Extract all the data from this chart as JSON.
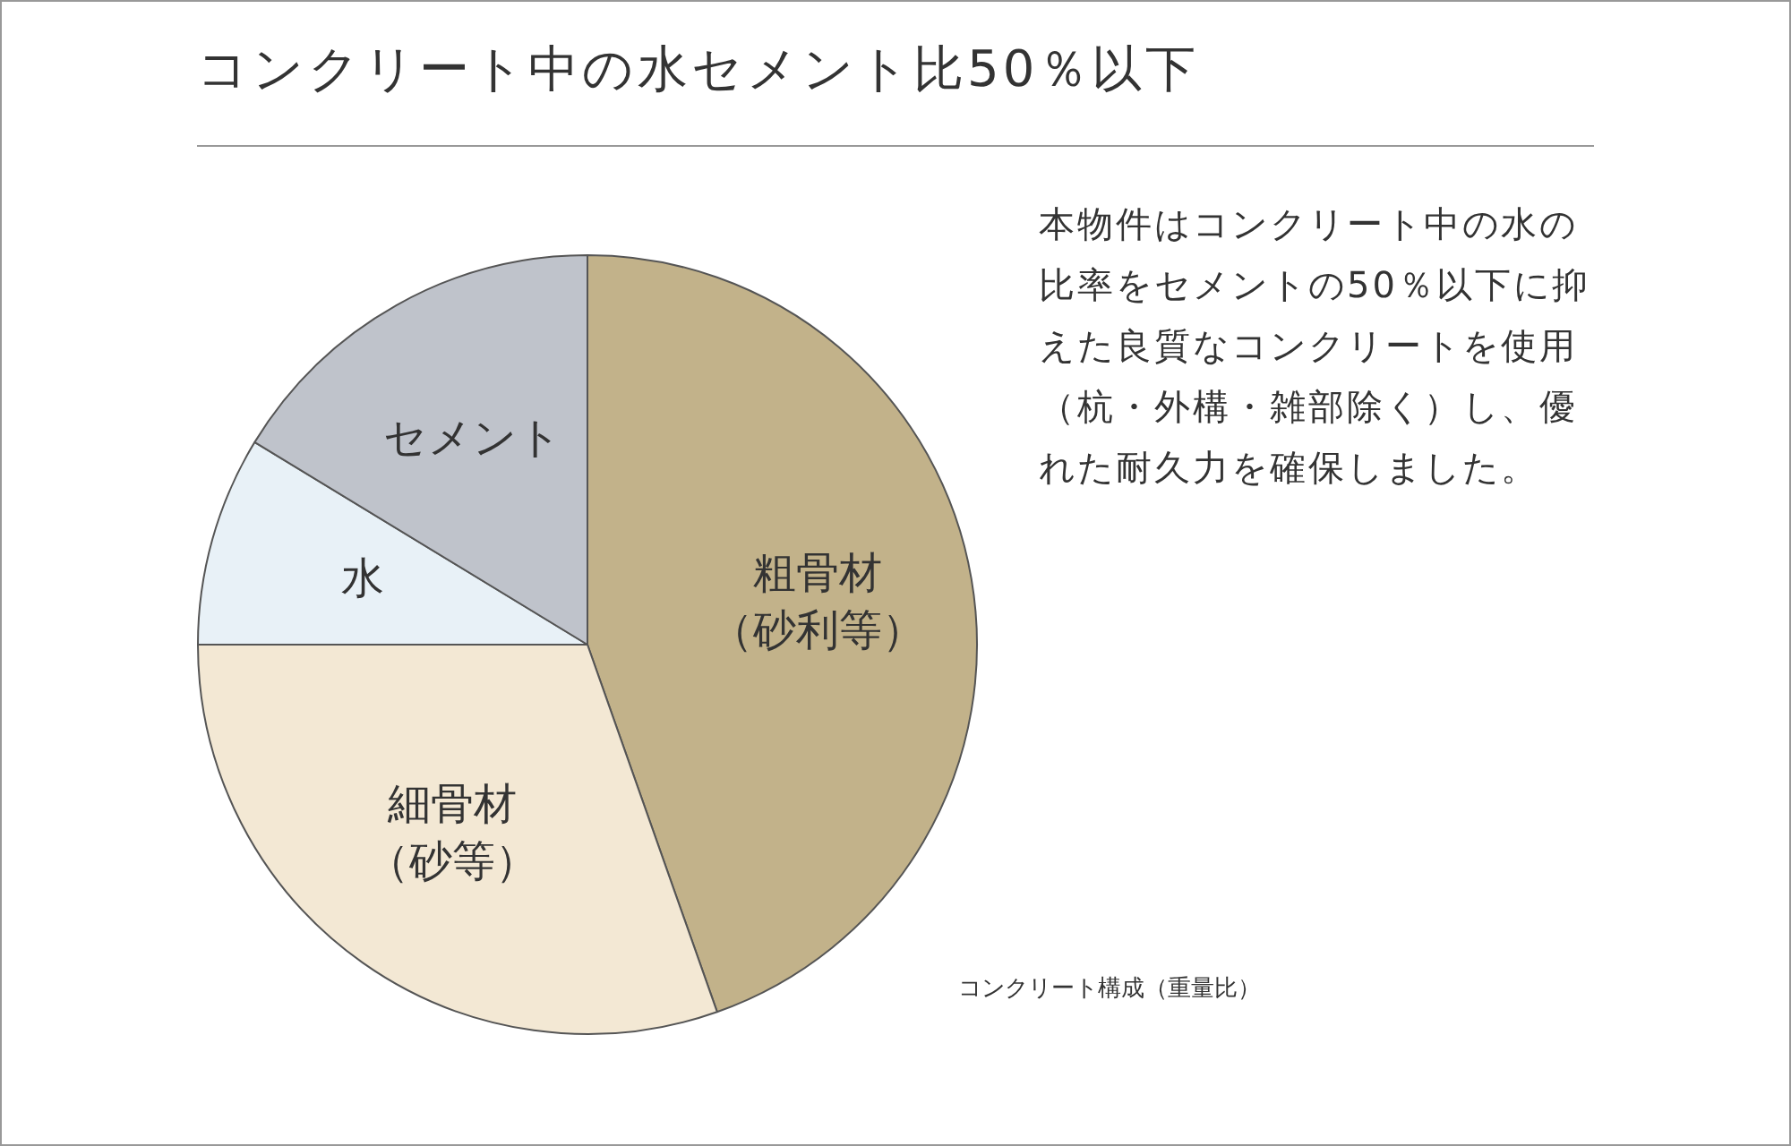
{
  "chart_data": {
    "type": "pie",
    "title": "コンクリート中の水セメント比50％以下",
    "categories": [
      "粗骨材（砂利等）",
      "細骨材（砂等）",
      "水",
      "セメント"
    ],
    "values": [
      44.6,
      30.4,
      8.7,
      16.3
    ],
    "colors": [
      "#c2b28a",
      "#f3e8d4",
      "#e8f1f7",
      "#bfc3cb"
    ],
    "legend": false,
    "annotations": [
      "本物件はコンクリート中の水の比率をセメントの50％以下に抑えた良質なコンクリートを使用（杭・外構・雑部除く）し、優れた耐久力を確保しました。",
      "コンクリート構成（重量比）"
    ]
  }
}
